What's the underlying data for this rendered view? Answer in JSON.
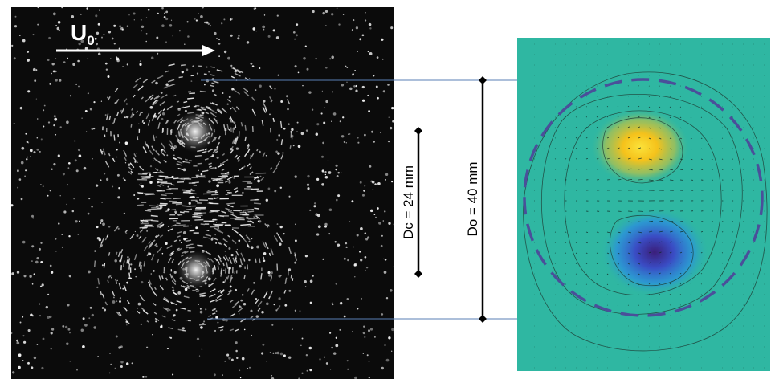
{
  "flow_label": {
    "main": "U",
    "subscript": "0"
  },
  "dimensions": {
    "core": "Dc = 24 mm",
    "outer": "Do = 40 mm"
  },
  "colors": {
    "background": "#ffffff",
    "photo": "#0b0b0b",
    "field_bg": "#2fb7a2",
    "positive_vorticity": "#f2c21c",
    "negative_vorticity": "#3a2a8c",
    "guide_line": "#5a7fb5",
    "boundary_dash": "#4a4f9a"
  }
}
